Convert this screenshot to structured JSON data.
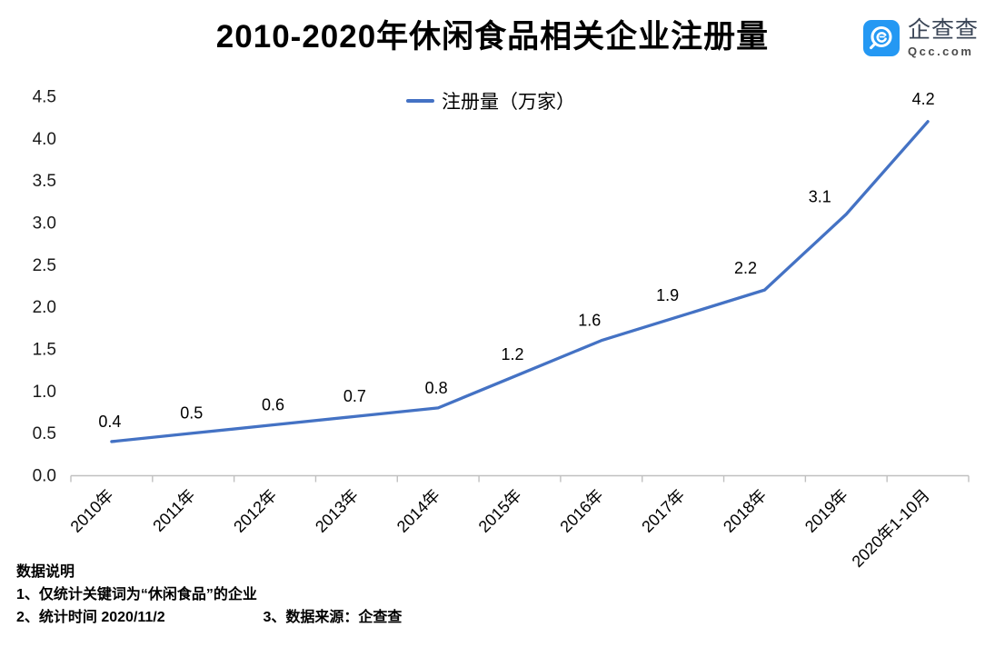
{
  "header": {
    "title": "2010-2020年休闲食品相关企业注册量",
    "logo": {
      "name_cn": "企查查",
      "domain": "Qcc.com",
      "icon_color": "#2498F3"
    }
  },
  "chart_data": {
    "type": "line",
    "title": "2010-2020年休闲食品相关企业注册量",
    "categories": [
      "2010年",
      "2011年",
      "2012年",
      "2013年",
      "2014年",
      "2015年",
      "2016年",
      "2017年",
      "2018年",
      "2019年",
      "2020年1-10月"
    ],
    "series": [
      {
        "name": "注册量（万家）",
        "values": [
          0.4,
          0.5,
          0.6,
          0.7,
          0.8,
          1.2,
          1.6,
          1.9,
          2.2,
          3.1,
          4.2
        ],
        "color": "#4472C4"
      }
    ],
    "legend_position": "top-center",
    "xlabel": "",
    "ylabel": "",
    "ylim": [
      0,
      4.5
    ],
    "ytick_step": 0.5,
    "ytick_labels": [
      "0.0",
      "0.5",
      "1.0",
      "1.5",
      "2.0",
      "2.5",
      "3.0",
      "3.5",
      "4.0",
      "4.5"
    ],
    "grid": false,
    "data_labels": true,
    "axis_color": "#C0C0C0",
    "text_color": "#000000"
  },
  "footnotes": {
    "heading": "数据说明",
    "note1": "1、仅统计关键词为“休闲食品”的企业",
    "note2": "2、统计时间 2020/11/2",
    "note3": "3、数据来源：企查查"
  }
}
